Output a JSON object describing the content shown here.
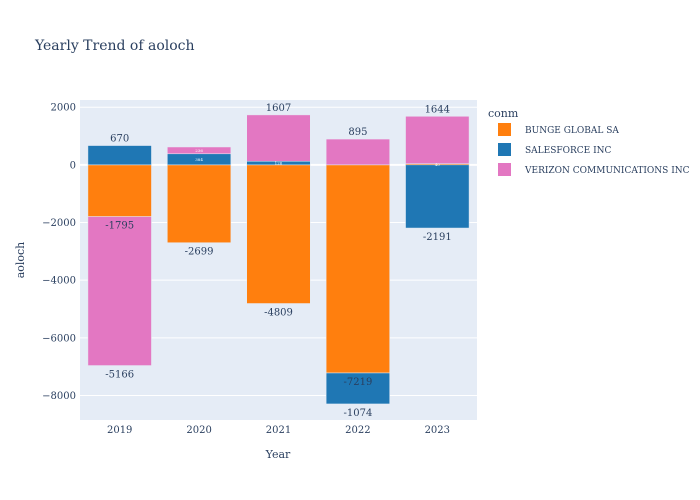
{
  "chart_data": {
    "type": "bar",
    "barmode": "relative",
    "title": "Yearly Trend of aoloch",
    "xlabel": "Year",
    "ylabel": "aoloch",
    "categories": [
      "2019",
      "2020",
      "2021",
      "2022",
      "2023"
    ],
    "ylim": [
      -8850,
      2250
    ],
    "yticks": [
      2000,
      0,
      -2000,
      -4000,
      -6000,
      -8000
    ],
    "ytick_labels": [
      "2000",
      "0",
      "−2000",
      "−4000",
      "−6000",
      "−8000"
    ],
    "legend_title": "conm",
    "legend_position": "right",
    "grid": true,
    "series": [
      {
        "name": "BUNGE GLOBAL SA",
        "color": "#ff7f0e",
        "values": [
          -1795,
          -2699,
          -4809,
          -7219,
          40
        ],
        "labels": [
          "-1795",
          "-2699",
          "-4809",
          "-7219",
          "40"
        ]
      },
      {
        "name": "SALESFORCE INC",
        "color": "#1f77b4",
        "values": [
          670,
          384,
          126,
          -1074,
          -2191
        ],
        "labels": [
          "670",
          "384",
          "126",
          "-1074",
          "-2191"
        ]
      },
      {
        "name": "VERIZON COMMUNICATIONS INC",
        "color": "#e377c2",
        "values": [
          -5166,
          236,
          1607,
          895,
          1644
        ],
        "labels": [
          "-5166",
          "236",
          "1607",
          "895",
          "1644"
        ]
      }
    ]
  }
}
